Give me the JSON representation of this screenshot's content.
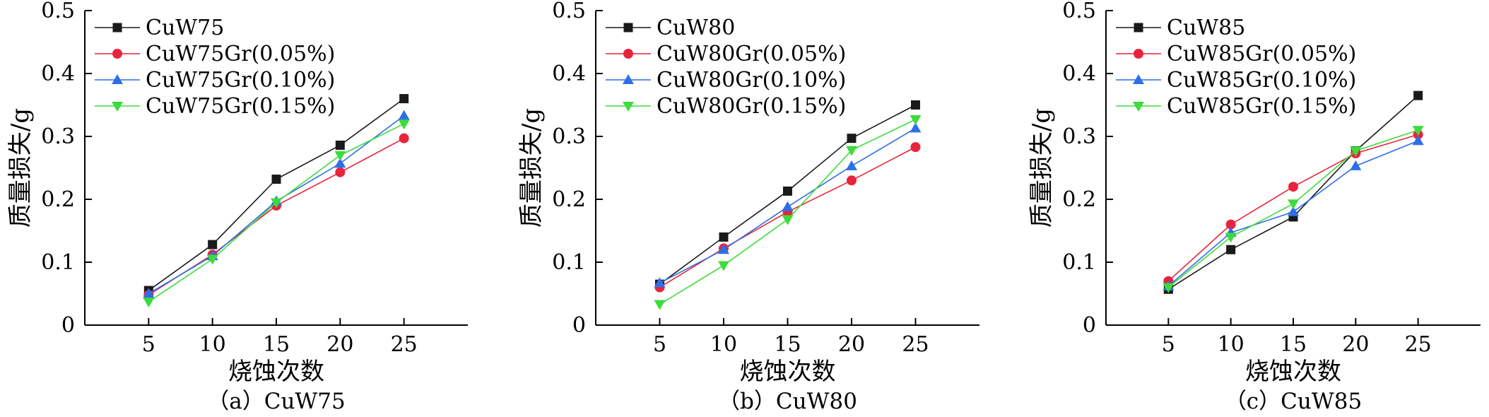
{
  "figure": {
    "colors": {
      "black": "#1a1a1a",
      "red": "#e8243c",
      "blue": "#2f6fe6",
      "green": "#3cdc3c"
    }
  },
  "chart_data": [
    {
      "type": "line",
      "caption": "（a）CuW75",
      "xlabel": "烧蚀次数",
      "ylabel": "质量损失/g",
      "x": [
        5,
        10,
        15,
        20,
        25
      ],
      "xlim": [
        0,
        30
      ],
      "ylim": [
        0,
        0.5
      ],
      "x_ticks": [
        5,
        10,
        15,
        20,
        25
      ],
      "y_ticks": [
        "0",
        "0.1",
        "0.2",
        "0.3",
        "0.4",
        "0.5"
      ],
      "legend_position": "top-left",
      "series": [
        {
          "name": "CuW75",
          "color": "#1a1a1a",
          "marker": "square",
          "values": [
            0.055,
            0.128,
            0.232,
            0.286,
            0.36
          ]
        },
        {
          "name": "CuW75Gr(0.05%)",
          "color": "#e8243c",
          "marker": "circle",
          "values": [
            0.048,
            0.112,
            0.19,
            0.243,
            0.297
          ]
        },
        {
          "name": "CuW75Gr(0.10%)",
          "color": "#2f6fe6",
          "marker": "triangle-up",
          "values": [
            0.05,
            0.11,
            0.197,
            0.257,
            0.333
          ]
        },
        {
          "name": "CuW75Gr(0.15%)",
          "color": "#3cdc3c",
          "marker": "triangle-down",
          "values": [
            0.037,
            0.105,
            0.195,
            0.27,
            0.32
          ]
        }
      ]
    },
    {
      "type": "line",
      "caption": "（b）CuW80",
      "xlabel": "烧蚀次数",
      "ylabel": "质量损失/g",
      "x": [
        5,
        10,
        15,
        20,
        25
      ],
      "xlim": [
        0,
        30
      ],
      "ylim": [
        0,
        0.5
      ],
      "x_ticks": [
        5,
        10,
        15,
        20,
        25
      ],
      "y_ticks": [
        "0",
        "0.1",
        "0.2",
        "0.3",
        "0.4",
        "0.5"
      ],
      "legend_position": "top-left",
      "series": [
        {
          "name": "CuW80",
          "color": "#1a1a1a",
          "marker": "square",
          "values": [
            0.065,
            0.14,
            0.213,
            0.297,
            0.35
          ]
        },
        {
          "name": "CuW80Gr(0.05%)",
          "color": "#e8243c",
          "marker": "circle",
          "values": [
            0.06,
            0.122,
            0.18,
            0.23,
            0.283
          ]
        },
        {
          "name": "CuW80Gr(0.10%)",
          "color": "#2f6fe6",
          "marker": "triangle-up",
          "values": [
            0.067,
            0.12,
            0.188,
            0.253,
            0.313
          ]
        },
        {
          "name": "CuW80Gr(0.15%)",
          "color": "#3cdc3c",
          "marker": "triangle-down",
          "values": [
            0.033,
            0.095,
            0.168,
            0.278,
            0.327
          ]
        }
      ]
    },
    {
      "type": "line",
      "caption": "（c）CuW85",
      "xlabel": "烧蚀次数",
      "ylabel": "质量损失/g",
      "x": [
        5,
        10,
        15,
        20,
        25
      ],
      "xlim": [
        0,
        30
      ],
      "ylim": [
        0,
        0.5
      ],
      "x_ticks": [
        5,
        10,
        15,
        20,
        25
      ],
      "y_ticks": [
        "0",
        "0.1",
        "0.2",
        "0.3",
        "0.4",
        "0.5"
      ],
      "legend_position": "top-left",
      "series": [
        {
          "name": "CuW85",
          "color": "#1a1a1a",
          "marker": "square",
          "values": [
            0.057,
            0.12,
            0.172,
            0.277,
            0.365
          ]
        },
        {
          "name": "CuW85Gr(0.05%)",
          "color": "#e8243c",
          "marker": "circle",
          "values": [
            0.07,
            0.16,
            0.22,
            0.273,
            0.303
          ]
        },
        {
          "name": "CuW85Gr(0.10%)",
          "color": "#2f6fe6",
          "marker": "triangle-up",
          "values": [
            0.062,
            0.147,
            0.18,
            0.253,
            0.293
          ]
        },
        {
          "name": "CuW85Gr(0.15%)",
          "color": "#3cdc3c",
          "marker": "triangle-down",
          "values": [
            0.06,
            0.14,
            0.193,
            0.277,
            0.31
          ]
        }
      ]
    }
  ]
}
